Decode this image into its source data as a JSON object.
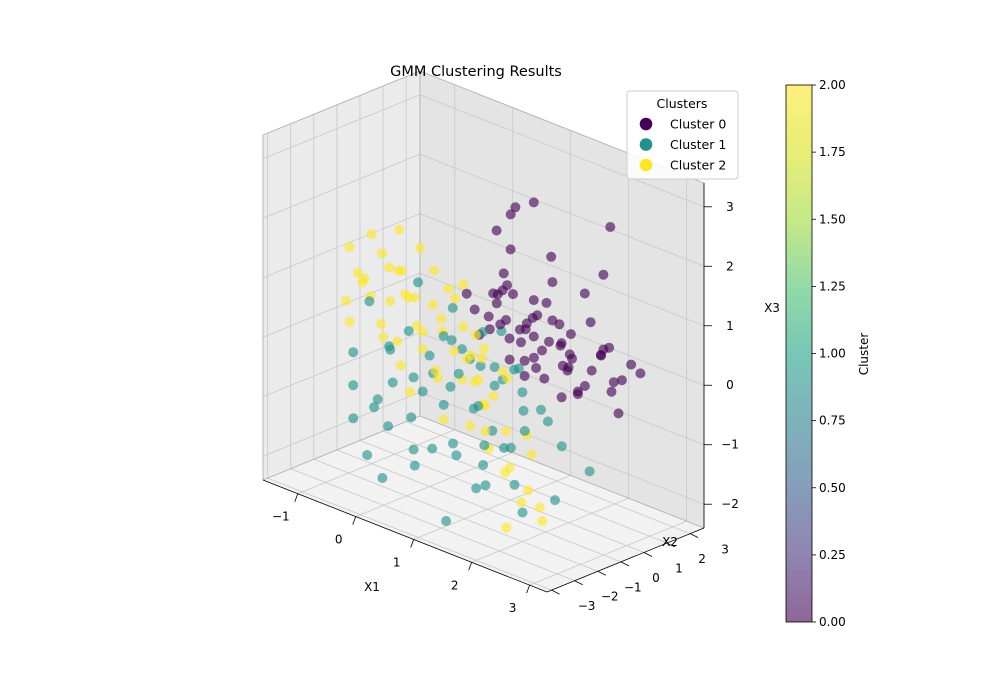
{
  "chart_data": {
    "type": "scatter",
    "projection": "3d",
    "title": "GMM Clustering Results",
    "xlabel": "X1",
    "ylabel": "X2",
    "zlabel": "X3",
    "xlim": [
      -1.6,
      3.3
    ],
    "ylim": [
      -3.2,
      3.6
    ],
    "zlim": [
      -2.4,
      3.4
    ],
    "x_ticks": [
      -1,
      0,
      1,
      2,
      3
    ],
    "y_ticks": [
      -3,
      -2,
      -1,
      0,
      1,
      2,
      3
    ],
    "z_ticks": [
      -2,
      -1,
      0,
      1,
      2,
      3
    ],
    "x_tick_labels": [
      "−1",
      "0",
      "1",
      "2",
      "3"
    ],
    "y_tick_labels": [
      "−3",
      "−2",
      "−1",
      "0",
      "1",
      "2",
      "3"
    ],
    "z_tick_labels": [
      "−2",
      "−1",
      "0",
      "1",
      "2",
      "3"
    ],
    "grid": true,
    "legend": {
      "title": "Clusters",
      "placement": "top-right",
      "entries": [
        "Cluster 0",
        "Cluster 1",
        "Cluster 2"
      ]
    },
    "colorbar": {
      "label": "Cluster",
      "range": [
        0,
        2
      ],
      "ticks": [
        0.0,
        0.25,
        0.5,
        0.75,
        1.0,
        1.25,
        1.5,
        1.75,
        2.0
      ],
      "tick_labels": [
        "0.00",
        "0.25",
        "0.50",
        "0.75",
        "1.00",
        "1.25",
        "1.50",
        "1.75",
        "2.00"
      ],
      "colormap": "viridis"
    },
    "series": [
      {
        "name": "Cluster 0",
        "color": "#440154",
        "points": [
          [
            1.2,
            1.5,
            2.6
          ],
          [
            1.4,
            0.2,
            2.8
          ],
          [
            2.4,
            1.8,
            2.6
          ],
          [
            2.6,
            1.0,
            2.0
          ],
          [
            0.2,
            2.4,
            1.6
          ],
          [
            0.6,
            2.0,
            1.5
          ],
          [
            1.0,
            1.0,
            2.4
          ],
          [
            1.5,
            1.5,
            1.8
          ],
          [
            1.8,
            0.8,
            1.6
          ],
          [
            2.2,
            1.2,
            1.5
          ],
          [
            2.8,
            0.5,
            0.9
          ],
          [
            3.0,
            1.6,
            0.4
          ],
          [
            2.6,
            2.2,
            0.3
          ],
          [
            0.8,
            1.2,
            1.3
          ],
          [
            1.2,
            0.6,
            1.2
          ],
          [
            1.0,
            2.0,
            0.8
          ],
          [
            1.6,
            1.3,
            0.8
          ],
          [
            1.3,
            1.8,
            0.9
          ],
          [
            2.0,
            0.6,
            1.0
          ],
          [
            2.4,
            1.4,
            0.5
          ],
          [
            1.1,
            0.3,
            0.7
          ],
          [
            0.5,
            1.5,
            0.8
          ],
          [
            0.9,
            0.9,
            1.1
          ],
          [
            1.4,
            1.0,
            0.5
          ],
          [
            1.8,
            1.6,
            0.6
          ],
          [
            2.0,
            2.0,
            0.0
          ],
          [
            2.3,
            0.2,
            0.4
          ],
          [
            1.6,
            0.5,
            0.3
          ],
          [
            1.0,
            1.4,
            0.4
          ],
          [
            0.7,
            0.8,
            0.6
          ],
          [
            1.3,
            0.2,
            0.2
          ],
          [
            1.9,
            1.0,
            0.2
          ],
          [
            2.2,
            0.9,
            -0.1
          ],
          [
            2.5,
            1.6,
            -0.1
          ],
          [
            1.7,
            1.9,
            0.1
          ],
          [
            1.2,
            1.1,
            0.0
          ],
          [
            0.6,
            1.1,
            0.3
          ],
          [
            0.4,
            0.6,
            0.9
          ],
          [
            1.5,
            0.7,
            0.9
          ],
          [
            2.1,
            1.7,
            0.9
          ],
          [
            0.3,
            2.2,
            0.6
          ],
          [
            0.8,
            2.2,
            0.3
          ],
          [
            1.4,
            2.2,
            0.2
          ],
          [
            1.9,
            0.4,
            0.7
          ],
          [
            2.7,
            1.2,
            0.2
          ],
          [
            1.1,
            0.7,
            0.4
          ],
          [
            1.7,
            1.4,
            0.4
          ],
          [
            0.9,
            1.7,
            0.1
          ],
          [
            1.5,
            1.2,
            -0.2
          ],
          [
            2.0,
            1.4,
            -0.3
          ],
          [
            2.4,
            0.7,
            0.1
          ],
          [
            1.3,
            0.9,
            0.6
          ],
          [
            0.7,
            1.6,
            1.0
          ],
          [
            1.0,
            0.4,
            1.0
          ],
          [
            2.0,
            2.4,
            0.2
          ],
          [
            2.9,
            0.9,
            -0.2
          ],
          [
            1.6,
            2.0,
            -0.1
          ],
          [
            1.2,
            1.6,
            -0.2
          ],
          [
            0.5,
            0.9,
            0.2
          ],
          [
            1.8,
            1.2,
            -0.4
          ],
          [
            2.3,
            2.0,
            0.5
          ],
          [
            1.4,
            0.6,
            -0.1
          ],
          [
            0.8,
            1.3,
            0.5
          ],
          [
            2.6,
            1.8,
            0.1
          ],
          [
            1.9,
            0.1,
            0.6
          ],
          [
            1.1,
            1.9,
            0.6
          ],
          [
            2.1,
            0.8,
            0.5
          ],
          [
            0.3,
            1.2,
            0.5
          ]
        ]
      },
      {
        "name": "Cluster 1",
        "color": "#21918c",
        "points": [
          [
            -0.8,
            -1.3,
            -0.8
          ],
          [
            -0.4,
            -1.4,
            -1.0
          ],
          [
            0.0,
            -1.8,
            -1.1
          ],
          [
            0.6,
            -2.2,
            -1.2
          ],
          [
            1.0,
            -2.4,
            -1.0
          ],
          [
            1.6,
            -2.0,
            -1.5
          ],
          [
            2.0,
            -2.6,
            -1.2
          ],
          [
            2.4,
            -2.0,
            -1.6
          ],
          [
            0.2,
            -0.8,
            -0.6
          ],
          [
            0.6,
            -0.6,
            -0.4
          ],
          [
            1.0,
            -0.4,
            -0.6
          ],
          [
            1.4,
            -0.8,
            -0.8
          ],
          [
            1.8,
            -1.0,
            -0.9
          ],
          [
            2.2,
            -1.4,
            -0.4
          ],
          [
            2.6,
            -0.8,
            -0.6
          ],
          [
            0.0,
            0.0,
            -0.2
          ],
          [
            0.4,
            0.4,
            0.0
          ],
          [
            0.8,
            0.2,
            -0.1
          ],
          [
            1.2,
            -0.2,
            0.1
          ],
          [
            1.6,
            0.0,
            -0.2
          ],
          [
            -0.2,
            -0.4,
            0.2
          ],
          [
            0.2,
            -1.2,
            -0.3
          ],
          [
            0.8,
            -1.4,
            -0.5
          ],
          [
            1.4,
            -1.6,
            -0.3
          ],
          [
            2.0,
            -1.8,
            -0.7
          ],
          [
            -0.6,
            -0.2,
            -0.3
          ],
          [
            0.4,
            -1.8,
            -0.8
          ],
          [
            1.2,
            -2.0,
            -0.9
          ],
          [
            1.8,
            -2.2,
            -1.0
          ],
          [
            0.6,
            0.8,
            0.3
          ],
          [
            1.0,
            0.6,
            0.5
          ],
          [
            0.2,
            0.5,
            0.6
          ],
          [
            -0.4,
            0.5,
            0.8
          ],
          [
            -1.0,
            -0.8,
            -0.4
          ],
          [
            -0.2,
            -2.2,
            -1.6
          ],
          [
            0.3,
            -2.8,
            -1.7
          ],
          [
            1.4,
            -2.8,
            -2.0
          ],
          [
            2.8,
            -1.6,
            -1.3
          ],
          [
            3.0,
            -0.6,
            -0.9
          ],
          [
            1.6,
            -1.2,
            0.1
          ],
          [
            0.9,
            -1.0,
            0.0
          ],
          [
            0.5,
            -0.3,
            0.3
          ],
          [
            1.3,
            0.4,
            0.0
          ],
          [
            -0.3,
            -1.0,
            0.0
          ],
          [
            2.2,
            -0.4,
            -0.4
          ],
          [
            0.7,
            -2.4,
            -1.4
          ],
          [
            1.9,
            -2.4,
            -0.6
          ],
          [
            2.5,
            -2.6,
            -1.0
          ],
          [
            0.0,
            -1.6,
            -0.4
          ],
          [
            -0.6,
            -1.8,
            -1.2
          ],
          [
            1.1,
            -1.6,
            -1.2
          ],
          [
            2.4,
            -1.2,
            0.0
          ],
          [
            0.3,
            1.0,
            -0.3
          ],
          [
            0.9,
            0.9,
            -0.4
          ],
          [
            1.5,
            0.3,
            -0.6
          ],
          [
            -0.1,
            0.4,
            -0.6
          ],
          [
            0.6,
            -0.9,
            0.5
          ],
          [
            1.7,
            -0.4,
            0.3
          ],
          [
            -0.8,
            -0.6,
            0.5
          ],
          [
            0.1,
            -2.5,
            -0.5
          ]
        ]
      },
      {
        "name": "Cluster 2",
        "color": "#fde725",
        "points": [
          [
            -1.4,
            0.6,
            0.4
          ],
          [
            -1.2,
            0.2,
            0.6
          ],
          [
            -1.0,
            0.8,
            0.2
          ],
          [
            -0.9,
            -0.3,
            0.5
          ],
          [
            -0.7,
            0.4,
            0.9
          ],
          [
            -0.6,
            -0.6,
            0.2
          ],
          [
            -0.4,
            0.1,
            0.6
          ],
          [
            -0.3,
            0.9,
            0.4
          ],
          [
            -0.1,
            -0.4,
            0.8
          ],
          [
            0.1,
            0.3,
            0.2
          ],
          [
            0.2,
            -0.8,
            0.4
          ],
          [
            0.4,
            0.6,
            -0.2
          ],
          [
            0.5,
            -0.2,
            0.1
          ],
          [
            0.7,
            0.2,
            -0.4
          ],
          [
            0.8,
            -0.6,
            -0.2
          ],
          [
            1.0,
            -0.2,
            -0.6
          ],
          [
            1.1,
            -1.0,
            -0.8
          ],
          [
            1.3,
            -0.5,
            -0.3
          ],
          [
            1.5,
            -1.2,
            -1.0
          ],
          [
            1.7,
            -0.8,
            -1.3
          ],
          [
            1.9,
            -1.5,
            -1.2
          ],
          [
            2.1,
            -1.0,
            -1.5
          ],
          [
            2.3,
            -1.8,
            -1.5
          ],
          [
            2.5,
            -1.4,
            -1.8
          ],
          [
            -1.3,
            -0.2,
            -0.1
          ],
          [
            -1.1,
            1.0,
            0.7
          ],
          [
            -0.8,
            0.0,
            -0.2
          ],
          [
            -0.5,
            0.7,
            0.0
          ],
          [
            -0.2,
            0.2,
            -0.2
          ],
          [
            0.0,
            0.8,
            0.8
          ],
          [
            0.3,
            -0.4,
            -0.4
          ],
          [
            0.6,
            0.5,
            0.3
          ],
          [
            0.9,
            0.0,
            0.1
          ],
          [
            1.2,
            -0.9,
            0.0
          ],
          [
            1.4,
            -0.2,
            -0.9
          ],
          [
            1.6,
            -1.6,
            -0.6
          ],
          [
            -1.5,
            0.3,
            1.0
          ],
          [
            -1.0,
            -0.6,
            0.9
          ],
          [
            -0.6,
            1.1,
            1.2
          ],
          [
            -0.2,
            -0.9,
            0.1
          ],
          [
            0.2,
            0.0,
            0.5
          ],
          [
            0.5,
            -1.0,
            -0.1
          ],
          [
            0.8,
            0.4,
            -0.8
          ],
          [
            1.1,
            -0.4,
            0.4
          ],
          [
            -1.2,
            0.5,
            1.3
          ],
          [
            -0.8,
            0.7,
            1.5
          ],
          [
            -0.4,
            -0.2,
            1.1
          ],
          [
            0.0,
            0.2,
            1.2
          ],
          [
            0.4,
            0.1,
            0.9
          ],
          [
            0.7,
            -0.3,
            0.6
          ],
          [
            1.0,
            -0.7,
            0.3
          ],
          [
            1.3,
            0.1,
            -0.1
          ],
          [
            1.8,
            -0.3,
            -0.8
          ],
          [
            2.0,
            -0.6,
            -1.0
          ],
          [
            2.2,
            -2.2,
            -1.9
          ],
          [
            2.7,
            -2.0,
            -1.4
          ],
          [
            -0.9,
            1.2,
            0.3
          ],
          [
            -0.3,
            -0.5,
            -0.4
          ],
          [
            0.1,
            -1.1,
            -0.6
          ],
          [
            0.6,
            -0.9,
            -0.9
          ],
          [
            1.5,
            -0.6,
            0.2
          ],
          [
            -1.4,
            -0.1,
            0.2
          ],
          [
            -0.7,
            -0.3,
            1.3
          ],
          [
            0.3,
            0.7,
            1.0
          ]
        ]
      }
    ]
  }
}
